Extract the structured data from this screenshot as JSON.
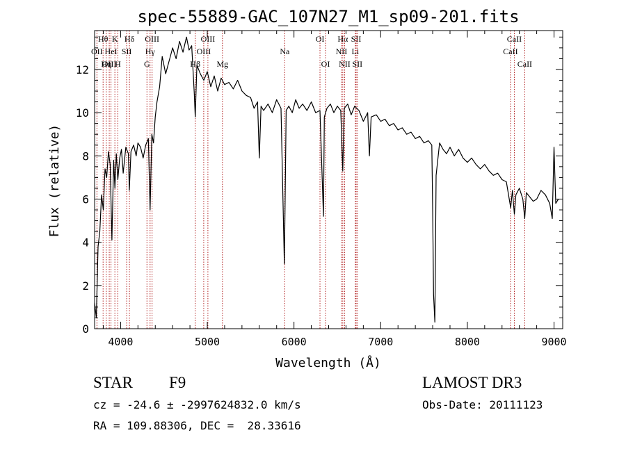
{
  "chart_data": {
    "type": "line",
    "title": "spec-55889-GAC_107N27_M1_sp09-201.fits",
    "xlabel": "Wavelength (Å)",
    "ylabel": "Flux (relative)",
    "xlim": [
      3700,
      9100
    ],
    "ylim": [
      0,
      13.8
    ],
    "x_ticks": [
      4000,
      5000,
      6000,
      7000,
      8000,
      9000
    ],
    "x_tick_labels": [
      "4000",
      "5000",
      "6000",
      "7000",
      "8000",
      "9000"
    ],
    "y_ticks": [
      0,
      2,
      4,
      6,
      8,
      10,
      12
    ],
    "y_tick_labels": [
      "0",
      "2",
      "4",
      "6",
      "8",
      "10",
      "12"
    ],
    "grid": false,
    "colors": {
      "spectrum": "#000000",
      "line_marker": "#b22222",
      "axes": "#000000"
    },
    "series": [
      {
        "name": "flux",
        "x": [
          3700,
          3720,
          3740,
          3760,
          3780,
          3800,
          3820,
          3840,
          3860,
          3880,
          3900,
          3920,
          3934,
          3950,
          3968,
          3990,
          4010,
          4030,
          4060,
          4090,
          4100,
          4120,
          4150,
          4180,
          4200,
          4230,
          4260,
          4290,
          4320,
          4340,
          4360,
          4380,
          4400,
          4420,
          4450,
          4480,
          4520,
          4560,
          4600,
          4640,
          4680,
          4720,
          4760,
          4790,
          4820,
          4850,
          4861,
          4880,
          4920,
          4960,
          5000,
          5040,
          5080,
          5120,
          5160,
          5200,
          5250,
          5300,
          5350,
          5400,
          5450,
          5500,
          5540,
          5580,
          5600,
          5620,
          5650,
          5700,
          5750,
          5800,
          5850,
          5889,
          5896,
          5910,
          5940,
          5980,
          6020,
          6060,
          6100,
          6150,
          6200,
          6250,
          6300,
          6340,
          6350,
          6380,
          6420,
          6460,
          6500,
          6540,
          6563,
          6580,
          6620,
          6660,
          6700,
          6750,
          6800,
          6850,
          6870,
          6890,
          6950,
          7000,
          7050,
          7100,
          7150,
          7200,
          7250,
          7300,
          7350,
          7400,
          7450,
          7500,
          7550,
          7590,
          7600,
          7610,
          7625,
          7640,
          7680,
          7720,
          7760,
          7800,
          7850,
          7900,
          7950,
          8000,
          8050,
          8100,
          8150,
          8200,
          8250,
          8300,
          8350,
          8400,
          8450,
          8500,
          8520,
          8542,
          8560,
          8600,
          8640,
          8662,
          8680,
          8720,
          8760,
          8800,
          8850,
          8900,
          8950,
          8980,
          9000,
          9020,
          9050
        ],
        "y": [
          1.2,
          0.5,
          3.8,
          4.5,
          6.2,
          5.5,
          7.4,
          7.0,
          8.2,
          7.6,
          4.1,
          7.8,
          6.5,
          8.1,
          6.9,
          7.9,
          8.3,
          7.2,
          8.4,
          8.1,
          6.4,
          8.2,
          8.5,
          8.0,
          8.6,
          8.4,
          7.9,
          8.5,
          8.8,
          5.5,
          9.0,
          8.6,
          9.8,
          10.5,
          11.2,
          12.6,
          11.8,
          12.4,
          13.0,
          12.5,
          13.3,
          12.8,
          13.5,
          12.9,
          13.1,
          10.9,
          9.8,
          12.2,
          11.8,
          11.5,
          11.9,
          11.2,
          11.7,
          11.0,
          11.6,
          11.3,
          11.4,
          11.1,
          11.5,
          11.0,
          10.8,
          10.7,
          10.2,
          10.5,
          7.9,
          10.3,
          10.1,
          10.4,
          10.0,
          10.6,
          10.2,
          3.0,
          5.3,
          10.1,
          10.3,
          10.0,
          10.6,
          10.2,
          10.4,
          10.1,
          10.5,
          10.0,
          10.1,
          5.2,
          9.8,
          10.2,
          10.4,
          10.0,
          10.3,
          10.1,
          7.3,
          10.2,
          10.4,
          9.9,
          10.3,
          10.1,
          9.6,
          10.0,
          8.0,
          9.8,
          9.9,
          9.6,
          9.7,
          9.4,
          9.5,
          9.2,
          9.3,
          9.0,
          9.1,
          8.8,
          8.9,
          8.6,
          8.7,
          8.5,
          5.4,
          1.6,
          0.3,
          7.1,
          8.6,
          8.3,
          8.1,
          8.4,
          8.0,
          8.3,
          7.9,
          7.7,
          7.9,
          7.6,
          7.4,
          7.6,
          7.3,
          7.1,
          7.2,
          6.9,
          6.8,
          5.6,
          6.4,
          5.3,
          6.2,
          6.5,
          6.0,
          5.1,
          6.3,
          6.1,
          5.9,
          6.0,
          6.4,
          6.2,
          5.8,
          5.1,
          8.4,
          5.8,
          6.0
        ]
      }
    ],
    "line_markers": [
      {
        "label": "Hθ",
        "x": 3798,
        "row": 0
      },
      {
        "label": "OII",
        "x": 3727,
        "row": 1
      },
      {
        "label": "OIII",
        "x": 3869,
        "row": 2
      },
      {
        "label": "K",
        "x": 3934,
        "row": 0
      },
      {
        "label": "HeI",
        "x": 3889,
        "row": 1
      },
      {
        "label": "Hη",
        "x": 3835,
        "row": 2
      },
      {
        "label": "Hδ",
        "x": 4102,
        "row": 0
      },
      {
        "label": "SII",
        "x": 4070,
        "row": 1
      },
      {
        "label": "H",
        "x": 3968,
        "row": 2
      },
      {
        "label": "OIII",
        "x": 4363,
        "row": 0
      },
      {
        "label": "Hγ",
        "x": 4340,
        "row": 1
      },
      {
        "label": "G",
        "x": 4304,
        "row": 2
      },
      {
        "label": "OIII",
        "x": 5007,
        "row": 0
      },
      {
        "label": "OIII",
        "x": 4959,
        "row": 1
      },
      {
        "label": "Hβ",
        "x": 4861,
        "row": 2
      },
      {
        "label": "Mg",
        "x": 5175,
        "row": 2
      },
      {
        "label": "Na",
        "x": 5893,
        "row": 1
      },
      {
        "label": "OI",
        "x": 6300,
        "row": 0
      },
      {
        "label": "OI",
        "x": 6364,
        "row": 2
      },
      {
        "label": "Hα",
        "x": 6563,
        "row": 0
      },
      {
        "label": "NII",
        "x": 6548,
        "row": 1
      },
      {
        "label": "NII",
        "x": 6584,
        "row": 2
      },
      {
        "label": "SII",
        "x": 6717,
        "row": 0
      },
      {
        "label": "Li",
        "x": 6708,
        "row": 1
      },
      {
        "label": "SII",
        "x": 6731,
        "row": 2
      },
      {
        "label": "CaII",
        "x": 8542,
        "row": 0
      },
      {
        "label": "CaII",
        "x": 8498,
        "row": 1
      },
      {
        "label": "CaII",
        "x": 8662,
        "row": 2
      }
    ]
  },
  "info": {
    "object_class": "STAR",
    "subclass": "F9",
    "survey": "LAMOST DR3",
    "redshift_line": "cz = -24.6 ± -2997624832.0 km/s",
    "obs_date": "Obs-Date: 20111123",
    "coords": "RA = 109.88306, DEC =  28.33616"
  }
}
